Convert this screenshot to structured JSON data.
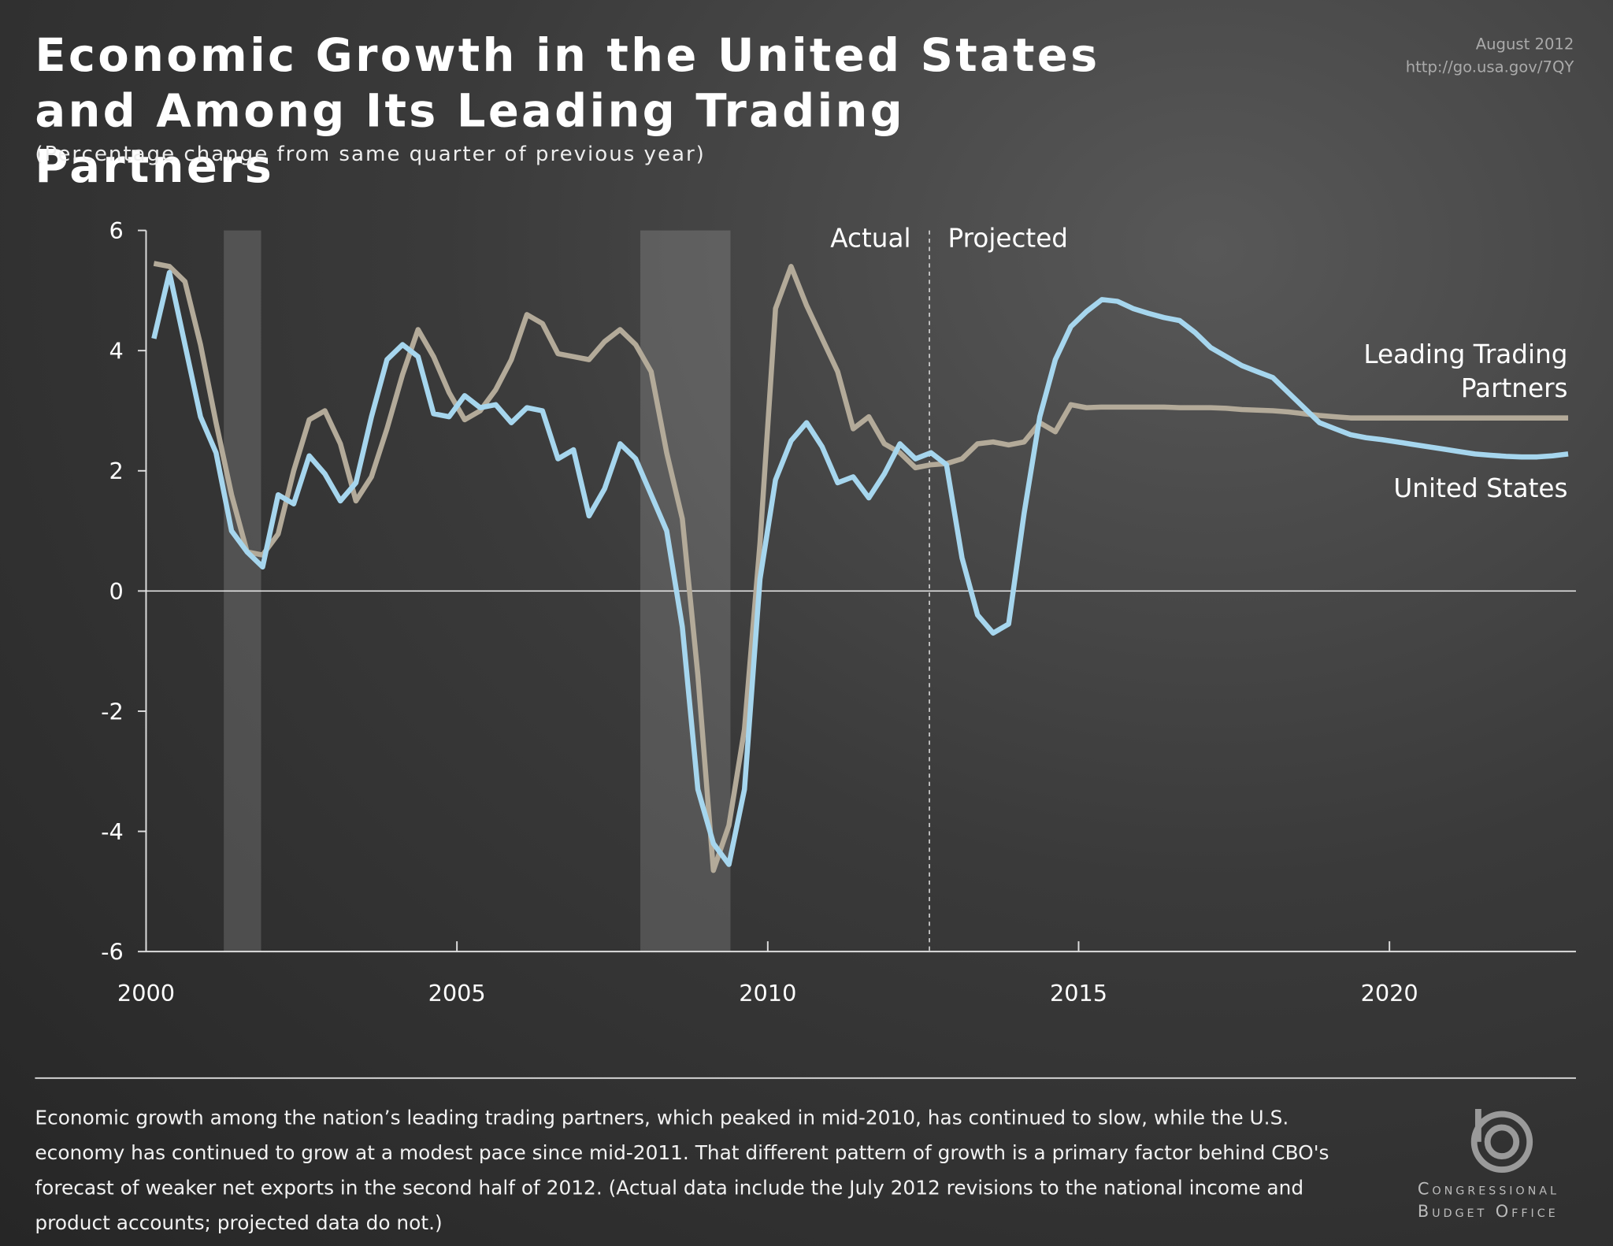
{
  "header": {
    "title": "Economic Growth in the United States and Among Its Leading Trading Partners",
    "subtitle": "(Percentage change from same quarter of previous year)",
    "date": "August 2012",
    "url": "http://go.usa.gov/7QY"
  },
  "chart_data": {
    "type": "line",
    "x": [
      2000.125,
      2000.375,
      2000.625,
      2000.875,
      2001.125,
      2001.375,
      2001.625,
      2001.875,
      2002.125,
      2002.375,
      2002.625,
      2002.875,
      2003.125,
      2003.375,
      2003.625,
      2003.875,
      2004.125,
      2004.375,
      2004.625,
      2004.875,
      2005.125,
      2005.375,
      2005.625,
      2005.875,
      2006.125,
      2006.375,
      2006.625,
      2006.875,
      2007.125,
      2007.375,
      2007.625,
      2007.875,
      2008.125,
      2008.375,
      2008.625,
      2008.875,
      2009.125,
      2009.375,
      2009.625,
      2009.875,
      2010.125,
      2010.375,
      2010.625,
      2010.875,
      2011.125,
      2011.375,
      2011.625,
      2011.875,
      2012.125,
      2012.375,
      2012.625,
      2012.875,
      2013.125,
      2013.375,
      2013.625,
      2013.875,
      2014.125,
      2014.375,
      2014.625,
      2014.875,
      2015.125,
      2015.375,
      2015.625,
      2015.875,
      2016.125,
      2016.375,
      2016.625,
      2016.875,
      2017.125,
      2017.375,
      2017.625,
      2017.875,
      2018.125,
      2018.375,
      2018.625,
      2018.875,
      2019.125,
      2019.375,
      2019.625,
      2019.875,
      2020.125,
      2020.375,
      2020.625,
      2020.875,
      2021.125,
      2021.375,
      2021.625,
      2021.875,
      2022.125,
      2022.375,
      2022.625,
      2022.875
    ],
    "series": [
      {
        "name": "Leading Trading Partners",
        "color": "#b3aa99",
        "values": [
          5.45,
          5.4,
          5.15,
          4.1,
          2.8,
          1.6,
          0.65,
          0.6,
          0.95,
          2.0,
          2.85,
          3.0,
          2.45,
          1.5,
          1.9,
          2.7,
          3.6,
          4.35,
          3.9,
          3.3,
          2.85,
          3.0,
          3.35,
          3.85,
          4.6,
          4.45,
          3.95,
          3.9,
          3.85,
          4.15,
          4.35,
          4.1,
          3.65,
          2.3,
          1.2,
          -1.4,
          -4.65,
          -3.9,
          -2.3,
          0.8,
          4.7,
          5.4,
          4.75,
          4.2,
          3.65,
          2.7,
          2.9,
          2.45,
          2.3,
          2.05,
          2.1,
          2.12,
          2.2,
          2.45,
          2.48,
          2.43,
          2.48,
          2.8,
          2.65,
          3.1,
          3.05,
          3.06,
          3.06,
          3.06,
          3.06,
          3.06,
          3.05,
          3.05,
          3.05,
          3.04,
          3.02,
          3.01,
          3.0,
          2.98,
          2.95,
          2.92,
          2.9,
          2.88,
          2.88,
          2.88,
          2.88,
          2.88,
          2.88,
          2.88,
          2.88,
          2.88,
          2.88,
          2.88,
          2.88,
          2.88,
          2.88,
          2.88
        ]
      },
      {
        "name": "United States",
        "color": "#a6d6ee",
        "values": [
          4.2,
          5.3,
          4.1,
          2.9,
          2.3,
          1.0,
          0.65,
          0.4,
          1.6,
          1.45,
          2.25,
          1.95,
          1.5,
          1.8,
          2.9,
          3.85,
          4.1,
          3.9,
          2.95,
          2.9,
          3.25,
          3.05,
          3.1,
          2.8,
          3.05,
          3.0,
          2.2,
          2.35,
          1.25,
          1.7,
          2.45,
          2.2,
          1.6,
          1.0,
          -0.6,
          -3.3,
          -4.2,
          -4.55,
          -3.3,
          0.2,
          1.85,
          2.5,
          2.8,
          2.4,
          1.8,
          1.9,
          1.55,
          1.95,
          2.45,
          2.2,
          2.3,
          2.1,
          0.55,
          -0.4,
          -0.7,
          -0.55,
          1.3,
          2.9,
          3.85,
          4.4,
          4.65,
          4.85,
          4.82,
          4.7,
          4.62,
          4.55,
          4.5,
          4.3,
          4.05,
          3.9,
          3.75,
          3.65,
          3.55,
          3.3,
          3.05,
          2.8,
          2.7,
          2.6,
          2.55,
          2.52,
          2.48,
          2.44,
          2.4,
          2.36,
          2.32,
          2.28,
          2.26,
          2.24,
          2.23,
          2.23,
          2.25,
          2.28
        ]
      }
    ],
    "xlim": [
      2000,
      2023
    ],
    "xticks": [
      2000,
      2005,
      2010,
      2015,
      2020
    ],
    "ylim": [
      -6,
      6
    ],
    "yticks": [
      -6,
      -4,
      -2,
      0,
      2,
      4,
      6
    ],
    "shaded_periods": [
      [
        2001.25,
        2001.85
      ],
      [
        2007.95,
        2009.4
      ]
    ],
    "divider_x": 2012.6,
    "annotations": [
      "Actual",
      "Projected"
    ]
  },
  "footer": {
    "caption": "Economic growth among the nation’s leading trading partners, which peaked in mid-2010, has continued to slow, while the U.S. economy has continued to grow at a modest pace since mid-2011. That different pattern of growth is a primary factor behind CBO's forecast of weaker net exports in the second half of 2012. (Actual data include the July 2012 revisions to the national income and product accounts; projected data do not.)",
    "logo_text": "Congressional Budget Office"
  }
}
